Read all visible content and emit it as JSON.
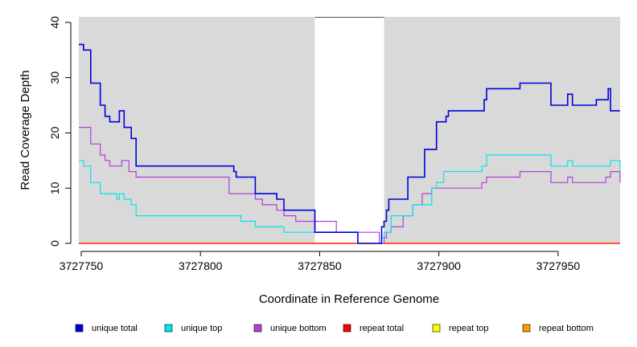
{
  "chart_data": {
    "type": "line",
    "xlabel": "Coordinate in Reference Genome",
    "ylabel": "Read Coverage Depth",
    "xlim": [
      3727749,
      3727976
    ],
    "ylim": [
      0,
      41
    ],
    "x_ticks": [
      3727750,
      3727800,
      3727850,
      3727900,
      3727950
    ],
    "y_ticks": [
      0,
      10,
      20,
      30,
      40
    ],
    "gap": [
      3727848,
      3727877
    ],
    "background_color": "#d9d9d9",
    "legend_position": "bottom",
    "series": [
      {
        "name": "unique total",
        "color": "#0000dd",
        "x": [
          3727749,
          3727750,
          3727751,
          3727753,
          3727754,
          3727757,
          3727758,
          3727760,
          3727762,
          3727765,
          3727766,
          3727767,
          3727768,
          3727770,
          3727771,
          3727773,
          3727812,
          3727814,
          3727815,
          3727823,
          3727832,
          3727835,
          3727840,
          3727848,
          3727857,
          3727866,
          3727875,
          3727876,
          3727877,
          3727878,
          3727879,
          3727880,
          3727887,
          3727889,
          3727894,
          3727897,
          3727899,
          3727902,
          3727903,
          3727904,
          3727918,
          3727919,
          3727920,
          3727934,
          3727946,
          3727947,
          3727953,
          3727954,
          3727956,
          3727963,
          3727966,
          3727970,
          3727971,
          3727972,
          3727976
        ],
        "y": [
          36,
          36,
          35,
          35,
          29,
          29,
          25,
          23,
          22,
          22,
          24,
          24,
          21,
          21,
          19,
          14,
          14,
          13,
          12,
          9,
          8,
          6,
          6,
          2,
          2,
          0,
          0,
          3,
          4,
          6,
          8,
          8,
          12,
          12,
          17,
          17,
          22,
          22,
          23,
          24,
          24,
          26,
          28,
          29,
          29,
          25,
          25,
          27,
          25,
          25,
          26,
          26,
          28,
          24,
          24
        ]
      },
      {
        "name": "unique top",
        "color": "#00e5ee",
        "x": [
          3727749,
          3727750,
          3727751,
          3727752,
          3727754,
          3727757,
          3727758,
          3727765,
          3727766,
          3727767,
          3727768,
          3727770,
          3727771,
          3727773,
          3727800,
          3727815,
          3727817,
          3727818,
          3727823,
          3727829,
          3727835,
          3727840,
          3727848,
          3727857,
          3727866,
          3727875,
          3727876,
          3727877,
          3727880,
          3727886,
          3727889,
          3727893,
          3727897,
          3727899,
          3727902,
          3727904,
          3727918,
          3727920,
          3727934,
          3727946,
          3727947,
          3727953,
          3727954,
          3727956,
          3727963,
          3727966,
          3727970,
          3727971,
          3727972,
          3727976
        ],
        "y": [
          15,
          15,
          14,
          14,
          11,
          11,
          9,
          8,
          9,
          9,
          8,
          8,
          7,
          5,
          5,
          5,
          4,
          4,
          3,
          3,
          2,
          2,
          2,
          2,
          0,
          0,
          1,
          2,
          5,
          5,
          7,
          7,
          10,
          11,
          13,
          13,
          14,
          16,
          16,
          16,
          14,
          14,
          15,
          14,
          14,
          14,
          14,
          14,
          15,
          13
        ]
      },
      {
        "name": "unique bottom",
        "color": "#b03fd8",
        "x": [
          3727749,
          3727750,
          3727753,
          3727754,
          3727757,
          3727758,
          3727760,
          3727762,
          3727765,
          3727766,
          3727767,
          3727768,
          3727770,
          3727771,
          3727773,
          3727812,
          3727815,
          3727823,
          3727826,
          3727832,
          3727835,
          3727840,
          3727848,
          3727857,
          3727866,
          3727875,
          3727876,
          3727877,
          3727878,
          3727880,
          3727885,
          3727889,
          3727893,
          3727897,
          3727899,
          3727904,
          3727918,
          3727920,
          3727934,
          3727946,
          3727947,
          3727953,
          3727954,
          3727956,
          3727963,
          3727966,
          3727970,
          3727971,
          3727972,
          3727976
        ],
        "y": [
          21,
          21,
          21,
          18,
          18,
          16,
          15,
          14,
          14,
          14,
          15,
          15,
          13,
          13,
          12,
          9,
          9,
          8,
          7,
          6,
          5,
          4,
          4,
          2,
          2,
          0,
          0,
          1,
          2,
          3,
          5,
          7,
          9,
          10,
          10,
          10,
          11,
          12,
          13,
          13,
          11,
          11,
          12,
          11,
          11,
          11,
          12,
          12,
          13,
          11
        ]
      },
      {
        "name": "repeat total",
        "color": "#ff0000",
        "x": [
          3727749,
          3727976
        ],
        "y": [
          0,
          0
        ]
      },
      {
        "name": "repeat top",
        "color": "#ffff00",
        "x": [
          3727749,
          3727976
        ],
        "y": [
          0,
          0
        ]
      },
      {
        "name": "repeat bottom",
        "color": "#ff9900",
        "x": [
          3727749,
          3727976
        ],
        "y": [
          0,
          0
        ]
      }
    ]
  }
}
